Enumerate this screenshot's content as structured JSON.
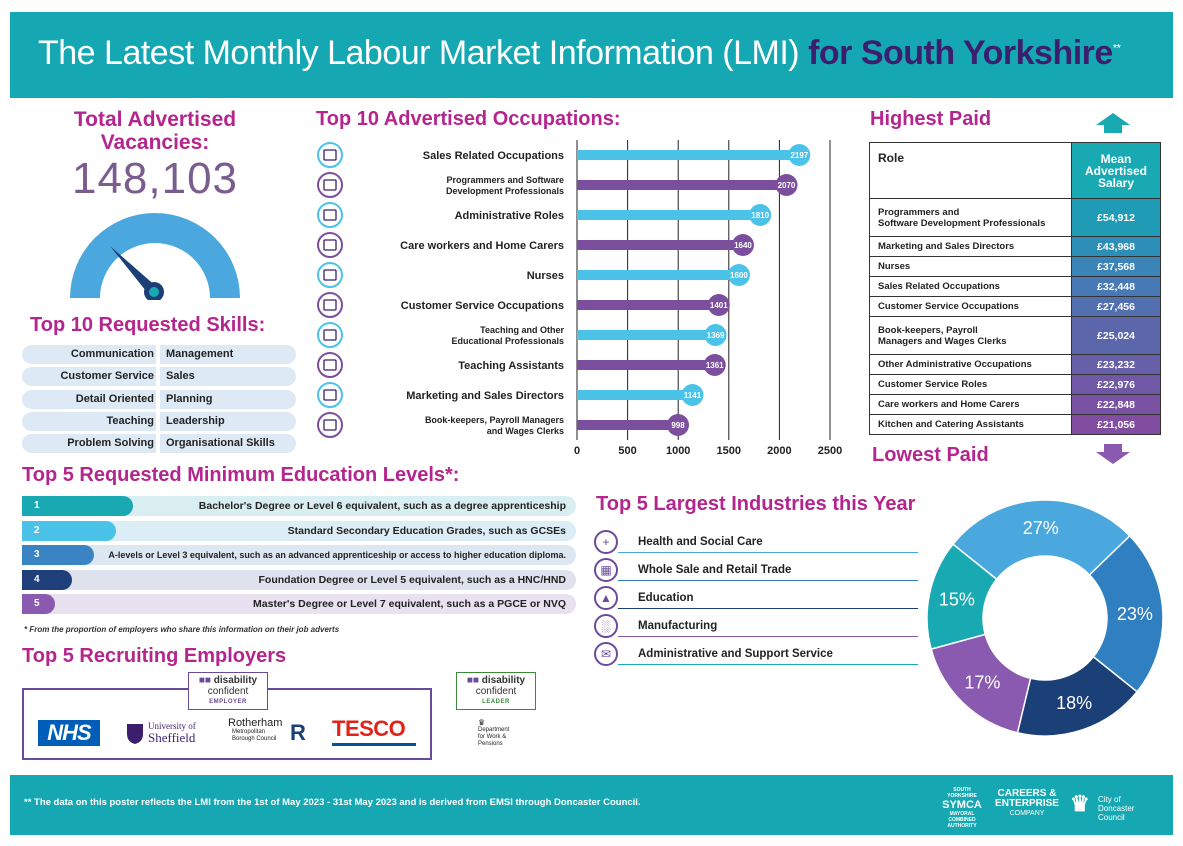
{
  "header": {
    "title_main": "The Latest Monthly Labour Market Information (LMI)",
    "title_highlight": "for South Yorkshire",
    "title_mark": "**"
  },
  "vacancies": {
    "title_line1": "Total Advertised",
    "title_line2": "Vacancies:",
    "value": "148,103"
  },
  "skills": {
    "title": "Top 10 Requested Skills:",
    "rows": [
      {
        "left": "Communication",
        "right": "Management"
      },
      {
        "left": "Customer Service",
        "right": "Sales"
      },
      {
        "left": "Detail Oriented",
        "right": "Planning"
      },
      {
        "left": "Teaching",
        "right": "Leadership"
      },
      {
        "left": "Problem Solving",
        "right": "Organisational Skills"
      }
    ]
  },
  "chart_data": {
    "type": "bar",
    "title": "Top 10 Advertised Occupations:",
    "categories": [
      [
        "Sales Related Occupations"
      ],
      [
        "Programmers and Software",
        "Development Professionals"
      ],
      [
        "Administrative Roles"
      ],
      [
        "Care workers and Home Carers"
      ],
      [
        "Nurses"
      ],
      [
        "Customer Service Occupations"
      ],
      [
        "Teaching and Other",
        "Educational Professionals"
      ],
      [
        "Teaching Assistants"
      ],
      [
        "Marketing and Sales Directors"
      ],
      [
        "Book-keepers, Payroll Managers",
        "and Wages Clerks"
      ]
    ],
    "values": [
      2197,
      2070,
      1810,
      1640,
      1600,
      1401,
      1369,
      1361,
      1141,
      998
    ],
    "value_labels": [
      "2197",
      "2070",
      "1810",
      "1640",
      "1600",
      "1401",
      "1369",
      "1361",
      "1141",
      "998"
    ],
    "xlim": [
      0,
      2500
    ],
    "xticks": [
      "0",
      "500",
      "1000",
      "1500",
      "2000",
      "2500"
    ],
    "grid": true,
    "icons": [
      "chart-icon",
      "code-icon",
      "mail-icon",
      "heart-hand-icon",
      "nurse-icon",
      "headset-icon",
      "graduation-cap-icon",
      "group-icon",
      "presentation-icon",
      "document-icon"
    ],
    "colors": [
      "#4bc3e8",
      "#7b4f9d"
    ]
  },
  "salary": {
    "title_high": "Highest Paid",
    "title_low": "Lowest Paid",
    "col_role": "Role",
    "col_salary": [
      "Mean",
      "Advertised",
      "Salary"
    ],
    "rows": [
      {
        "role": [
          "Programmers and",
          "Software Development Professionals"
        ],
        "value": "£54,912",
        "color": "#1f9bb5"
      },
      {
        "role": [
          "Marketing and Sales Directors"
        ],
        "value": "£43,968",
        "color": "#2d8fb8"
      },
      {
        "role": [
          "Nurses"
        ],
        "value": "£37,568",
        "color": "#3a84b8"
      },
      {
        "role": [
          "Sales Related Occupations"
        ],
        "value": "£32,448",
        "color": "#4779b6"
      },
      {
        "role": [
          "Customer Service Occupations"
        ],
        "value": "£27,456",
        "color": "#5270b0"
      },
      {
        "role": [
          "Book-keepers, Payroll",
          "Managers and Wages Clerks"
        ],
        "value": "£25,024",
        "color": "#5c67ab"
      },
      {
        "role": [
          "Other Administrative Occupations"
        ],
        "value": "£23,232",
        "color": "#6760a9"
      },
      {
        "role": [
          "Customer Service Roles"
        ],
        "value": "£22,976",
        "color": "#7158a6"
      },
      {
        "role": [
          "Care workers and Home Carers"
        ],
        "value": "£22,848",
        "color": "#7a52a3"
      },
      {
        "role": [
          "Kitchen and Catering Assistants"
        ],
        "value": "£21,056",
        "color": "#824ca0"
      }
    ]
  },
  "education": {
    "title": "Top 5 Requested Minimum Education Levels*:",
    "rows": [
      {
        "num": "1",
        "label": "Bachelor's Degree or Level 6 equivalent, such as a degree apprenticeship",
        "fill": 0.2,
        "color": "#19a9b2",
        "bg": "#d9eef0"
      },
      {
        "num": "2",
        "label": "Standard Secondary Education Grades, such as GCSEs",
        "fill": 0.17,
        "color": "#4bc3e8",
        "bg": "#dcedf6"
      },
      {
        "num": "3",
        "label": "A-levels or Level 3 equivalent, such as an advanced apprenticeship or access to higher education diploma.",
        "fill": 0.13,
        "color": "#3a84c4",
        "bg": "#dde7f2"
      },
      {
        "num": "4",
        "label": "Foundation Degree or Level 5 equivalent, such as a HNC/HND",
        "fill": 0.09,
        "color": "#1f3f7a",
        "bg": "#dde2ec"
      },
      {
        "num": "5",
        "label": "Master's Degree or Level 7 equivalent, such as a PGCE or NVQ",
        "fill": 0.06,
        "color": "#8a59b0",
        "bg": "#e9e0f0"
      }
    ],
    "note": "* From the proportion of employers who share this information on their job adverts"
  },
  "employers": {
    "title": "Top 5 Recruiting Employers",
    "dc_employer": {
      "line1": "disability",
      "line2": "confident",
      "level": "EMPLOYER"
    },
    "dc_leader": {
      "line1": "disability",
      "line2": "confident",
      "level": "LEADER"
    },
    "logos": {
      "nhs": "NHS",
      "sheffield": [
        "University of",
        "Sheffield"
      ],
      "rotherham": [
        "Rotherham",
        "Metropolitan",
        "Borough Council"
      ],
      "tesco": "TESCO",
      "dwp": [
        "Department",
        "for Work &",
        "Pensions"
      ]
    }
  },
  "industries": {
    "title": "Top 5 Largest Industries this Year",
    "items": [
      {
        "name": "Health and Social Care",
        "icon": "plus-icon",
        "pct": 27,
        "label": "27%",
        "color": "#4ba8de"
      },
      {
        "name": "Whole Sale and Retail Trade",
        "icon": "shop-icon",
        "pct": 23,
        "label": "23%",
        "color": "#2f7fc1"
      },
      {
        "name": "Education",
        "icon": "graduation-cap-icon",
        "pct": 18,
        "label": "18%",
        "color": "#1b3f77"
      },
      {
        "name": "Manufacturing",
        "icon": "factory-icon",
        "pct": 17,
        "label": "17%",
        "color": "#8a59b0"
      },
      {
        "name": "Administrative and Support Service",
        "icon": "envelope-icon",
        "pct": 15,
        "label": "15%",
        "color": "#19a9b2"
      }
    ]
  },
  "footer": {
    "note": "** The data on this poster reflects the LMI from the 1st of May 2023 - 31st May 2023 and is derived from EMSI through Doncaster Council.",
    "symca": [
      "SOUTH YORKSHIRE",
      "SYMCA",
      "MAYORAL",
      "COMBINED",
      "AUTHORITY"
    ],
    "careers": [
      "CAREERS &",
      "ENTERPRISE",
      "COMPANY"
    ],
    "doncaster": [
      "City of",
      "Doncaster",
      "Council"
    ]
  }
}
